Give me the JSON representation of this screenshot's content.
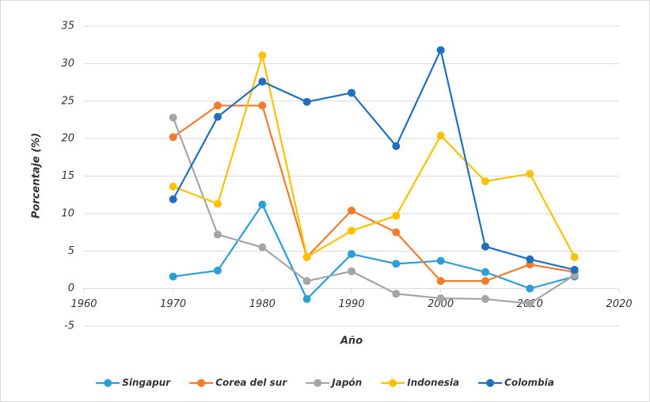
{
  "chart_data": {
    "type": "line",
    "x_label": "Año",
    "y_label": "Porcentaje (%)",
    "x": [
      1970,
      1975,
      1980,
      1985,
      1990,
      1995,
      2000,
      2005,
      2010,
      2015
    ],
    "series": [
      {
        "name": "Singapur",
        "color": "#2a9fd8",
        "values": [
          1.6,
          2.4,
          11.2,
          -1.4,
          4.6,
          3.3,
          3.7,
          2.2,
          0,
          1.6
        ]
      },
      {
        "name": "Corea del sur",
        "color": "#f37b2b",
        "values": [
          20.2,
          24.4,
          24.4,
          4.2,
          10.4,
          7.5,
          1.0,
          1.0,
          3.2,
          2.2
        ]
      },
      {
        "name": "Japón",
        "color": "#a5a5a5",
        "values": [
          22.8,
          7.2,
          5.5,
          1.0,
          2.3,
          -0.7,
          -1.3,
          -1.4,
          -2.0,
          1.8
        ]
      },
      {
        "name": "Indonesia",
        "color": "#ffc000",
        "values": [
          13.6,
          11.3,
          31.1,
          4.2,
          7.7,
          9.7,
          20.4,
          14.3,
          15.3,
          4.2
        ]
      },
      {
        "name": "Colombia",
        "color": "#2070c2",
        "values": [
          11.9,
          22.9,
          27.6,
          24.9,
          26.1,
          19.0,
          31.8,
          5.6,
          3.9,
          2.5
        ]
      }
    ],
    "xlim": [
      1960,
      2020
    ],
    "xticks": [
      1960,
      1970,
      1980,
      1990,
      2000,
      2010,
      2020
    ],
    "ylim": [
      -5,
      35
    ],
    "yticks": [
      -5,
      0,
      5,
      10,
      15,
      20,
      25,
      30,
      35
    ],
    "grid": true,
    "legend": "bottom"
  }
}
